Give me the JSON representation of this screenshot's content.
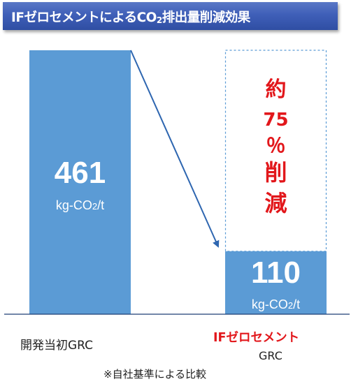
{
  "title": {
    "main": "IFゼロセメントによるCO",
    "sub": "2",
    "rest": "排出量削減効果"
  },
  "chart_data": {
    "type": "bar",
    "categories": [
      "開発当初GRC",
      "IFゼロセメントGRC"
    ],
    "values": [
      461,
      110
    ],
    "value_labels": [
      "461",
      "110"
    ],
    "unit_labels": [
      "kg-CO2/t",
      "kg-CO2/t"
    ],
    "ylim": [
      0,
      540
    ],
    "bar_color": "#5b9bd5",
    "annotation": {
      "lines": [
        "約",
        "75",
        "％",
        "削",
        "減"
      ],
      "color": "#e2171b"
    }
  },
  "labels": {
    "category1": "開発当初GRC",
    "category2_line1": "IFゼロセメント",
    "category2_line2": "GRC",
    "footnote": "※自社基準による比較"
  }
}
